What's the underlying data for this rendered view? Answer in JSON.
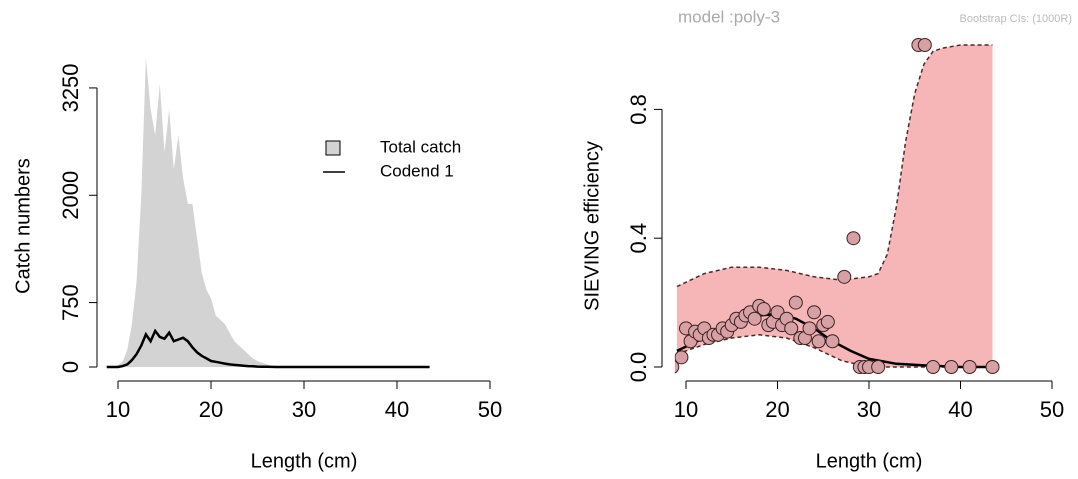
{
  "chart_data": [
    {
      "type": "area",
      "xlabel": "Length (cm)",
      "ylabel": "Catch numbers",
      "x": [
        8,
        8.5,
        9,
        9.5,
        10,
        10.5,
        11,
        11.5,
        12,
        12.5,
        13,
        13.5,
        14,
        14.5,
        15,
        15.5,
        16,
        16.5,
        17,
        17.5,
        18,
        18.5,
        19,
        19.5,
        20,
        20.5,
        21,
        21.5,
        22,
        22.5,
        23,
        23.5,
        24,
        24.5,
        25,
        25.5,
        26,
        26.5,
        27,
        30,
        35,
        40,
        43.5
      ],
      "series": [
        {
          "name": "Total catch",
          "color": "#d3d3d3",
          "kind": "area",
          "values": [
            0,
            0,
            0,
            5,
            20,
            60,
            200,
            500,
            1000,
            2000,
            3600,
            3000,
            2700,
            3300,
            2500,
            3000,
            2300,
            2700,
            2200,
            1900,
            1900,
            1500,
            1100,
            900,
            800,
            600,
            550,
            500,
            400,
            300,
            250,
            200,
            150,
            100,
            70,
            50,
            30,
            15,
            5,
            0,
            0,
            0,
            0
          ]
        },
        {
          "name": "Codend 1",
          "color": "#000000",
          "kind": "line",
          "values": [
            0,
            0,
            0,
            0,
            0,
            10,
            30,
            80,
            150,
            250,
            380,
            300,
            420,
            350,
            330,
            400,
            300,
            320,
            340,
            300,
            230,
            170,
            130,
            100,
            70,
            60,
            50,
            40,
            30,
            25,
            20,
            15,
            10,
            8,
            5,
            3,
            2,
            1,
            0,
            0,
            0,
            0,
            0
          ]
        }
      ],
      "xlim": [
        9,
        50
      ],
      "xticks": [
        10,
        20,
        30,
        40,
        50
      ],
      "ylim": [
        0,
        3750
      ],
      "yticks": [
        0,
        750,
        2000,
        3250
      ],
      "legend": "right"
    },
    {
      "type": "scatter",
      "title": "model :poly-3",
      "subtitle": "Bootstrap CIs: (1000R)",
      "xlabel": "Length (cm)",
      "ylabel": "SIEVING efficiency",
      "band": {
        "color": "#f6b5b7",
        "edge": "#4a2a2a",
        "x": [
          9,
          12,
          15,
          18,
          21,
          24,
          27,
          30,
          31,
          32,
          33,
          34,
          35,
          36,
          37,
          38,
          40,
          43.5
        ],
        "lower": [
          0.04,
          0.07,
          0.09,
          0.1,
          0.09,
          0.06,
          0.02,
          0,
          0,
          0,
          0,
          0,
          0,
          0,
          0,
          0,
          0,
          0
        ],
        "upper": [
          0.25,
          0.29,
          0.31,
          0.31,
          0.3,
          0.28,
          0.27,
          0.28,
          0.29,
          0.35,
          0.5,
          0.7,
          0.85,
          0.94,
          0.98,
          0.99,
          1,
          1
        ]
      },
      "curve": {
        "color": "#000000",
        "x": [
          9,
          12,
          15,
          18,
          20,
          22,
          24,
          26,
          28,
          30,
          33,
          36,
          40,
          43.5
        ],
        "values": [
          0.05,
          0.09,
          0.13,
          0.16,
          0.165,
          0.15,
          0.12,
          0.08,
          0.05,
          0.025,
          0.01,
          0.005,
          0,
          0
        ]
      },
      "points": {
        "color": "#d7a0a4",
        "x": [
          8.5,
          9.5,
          10,
          10.5,
          11,
          11.5,
          12,
          12.5,
          13,
          13.5,
          14,
          14.5,
          15,
          15.5,
          16,
          16.5,
          17,
          17.5,
          18,
          18.5,
          19,
          19.5,
          20,
          20.5,
          21,
          21.5,
          22,
          22.5,
          23,
          23.5,
          24,
          24.5,
          25,
          25.5,
          26,
          27.3,
          28.3,
          29,
          29.5,
          30,
          31,
          35.4,
          36.1,
          37,
          39,
          41,
          43.5
        ],
        "values": [
          0,
          0.03,
          0.12,
          0.08,
          0.11,
          0.1,
          0.12,
          0.09,
          0.1,
          0.1,
          0.12,
          0.11,
          0.13,
          0.15,
          0.14,
          0.16,
          0.17,
          0.15,
          0.19,
          0.18,
          0.13,
          0.14,
          0.17,
          0.13,
          0.15,
          0.12,
          0.2,
          0.09,
          0.09,
          0.12,
          0.17,
          0.08,
          0.13,
          0.14,
          0.08,
          0.28,
          0.4,
          0,
          0,
          0,
          0,
          1,
          1,
          0,
          0,
          0,
          0
        ]
      },
      "xlim": [
        9,
        50
      ],
      "xticks": [
        10,
        20,
        30,
        40,
        50
      ],
      "ylim": [
        0,
        1
      ],
      "yticks": [
        {
          "value": 0,
          "label": "0.0"
        },
        0.4,
        0.8
      ]
    }
  ]
}
